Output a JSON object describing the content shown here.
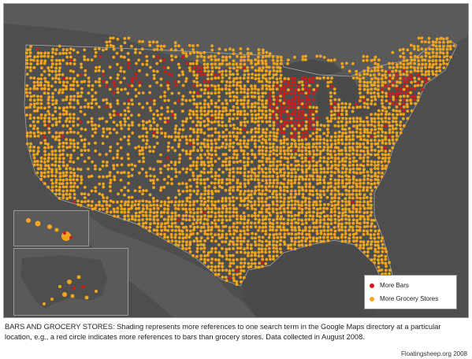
{
  "colors": {
    "background": "#4e4e4e",
    "land": "#5a5a5a",
    "lakes": "#4a4a4a",
    "bars": "#d21a1a",
    "grocery": "#f2a51a",
    "border": "#9a9a9a"
  },
  "legend": {
    "bars_label": "More Bars",
    "grocery_label": "More Grocery Stores"
  },
  "caption": {
    "text": "BARS AND GROCERY STORES: Shading represents more references to one search term in the Google Maps directory at a particular location, e.g., a red circle indicates more references to bars than grocery stores. Data collected in August 2008."
  },
  "credit": {
    "text": "Floatingsheep.org 2008"
  }
}
